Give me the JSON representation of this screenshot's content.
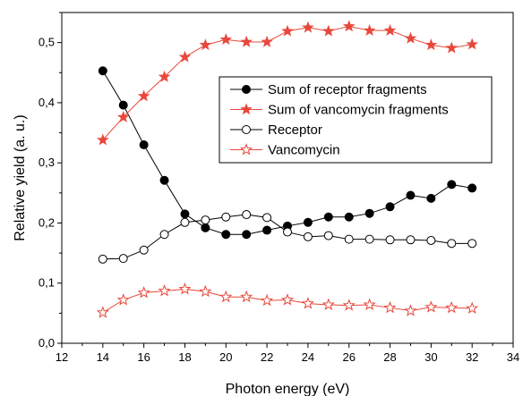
{
  "chart_data": {
    "type": "line",
    "xlabel": "Photon energy (eV)",
    "ylabel": "Relative yield (a. u.)",
    "xlim": [
      12,
      34
    ],
    "ylim": [
      0,
      0.55
    ],
    "x_ticks": [
      "12",
      "14",
      "16",
      "18",
      "20",
      "22",
      "24",
      "26",
      "28",
      "30",
      "32",
      "34"
    ],
    "y_ticks": [
      "0,0",
      "0,1",
      "0,2",
      "0,3",
      "0,4",
      "0,5"
    ],
    "grid": false,
    "legend_position": "upper-right",
    "x": [
      14,
      15,
      16,
      17,
      18,
      19,
      20,
      21,
      22,
      23,
      24,
      25,
      26,
      27,
      28,
      29,
      30,
      31,
      32
    ],
    "series": [
      {
        "name": "Sum of receptor fragments",
        "color": "#000000",
        "marker": "filled-circle",
        "values": [
          0.453,
          0.396,
          0.33,
          0.271,
          0.215,
          0.192,
          0.181,
          0.181,
          0.188,
          0.195,
          0.201,
          0.21,
          0.21,
          0.216,
          0.227,
          0.246,
          0.241,
          0.264,
          0.258
        ]
      },
      {
        "name": "Sum of vancomycin fragments",
        "color": "#e8483c",
        "marker": "filled-star",
        "values": [
          0.338,
          0.376,
          0.411,
          0.443,
          0.476,
          0.496,
          0.505,
          0.501,
          0.501,
          0.519,
          0.525,
          0.519,
          0.527,
          0.52,
          0.52,
          0.507,
          0.496,
          0.491,
          0.497
        ]
      },
      {
        "name": "Receptor",
        "color": "#000000",
        "marker": "open-circle",
        "values": [
          0.14,
          0.141,
          0.155,
          0.181,
          0.201,
          0.205,
          0.21,
          0.214,
          0.209,
          0.185,
          0.177,
          0.179,
          0.173,
          0.173,
          0.172,
          0.172,
          0.171,
          0.166,
          0.166
        ]
      },
      {
        "name": "Vancomycin",
        "color": "#e8483c",
        "marker": "open-star",
        "values": [
          0.051,
          0.072,
          0.084,
          0.087,
          0.09,
          0.086,
          0.077,
          0.077,
          0.071,
          0.072,
          0.066,
          0.064,
          0.063,
          0.064,
          0.059,
          0.054,
          0.06,
          0.059,
          0.058
        ]
      }
    ]
  }
}
